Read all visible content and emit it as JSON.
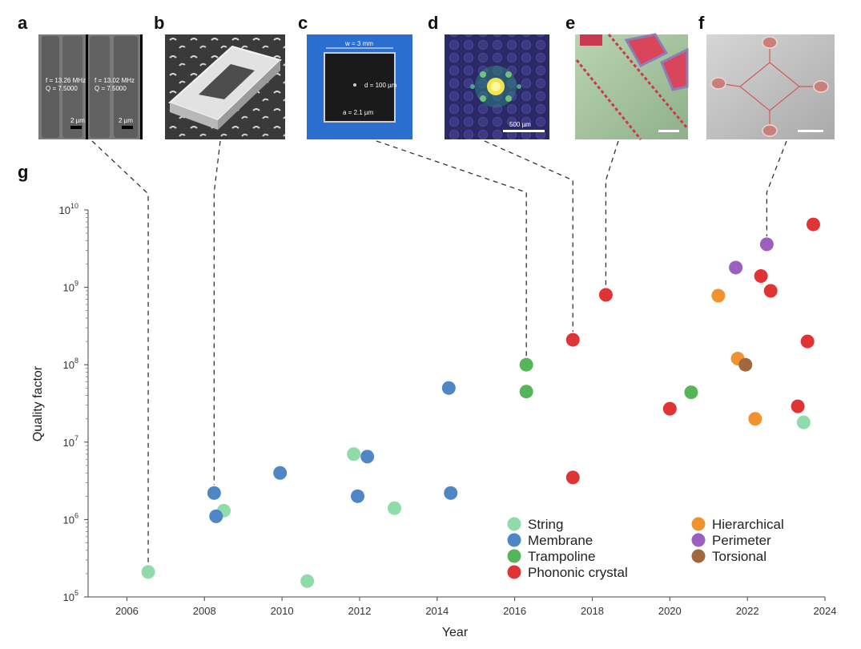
{
  "panels": {
    "letters": [
      "a",
      "b",
      "c",
      "d",
      "e",
      "f",
      "g"
    ],
    "a": {
      "left_label_line1": "f = 13.26 MHz",
      "left_label_line2": "Q = 7.5000",
      "right_label_line1": "f = 13.02 MHz",
      "right_label_line2": "Q = 7.5000",
      "scale_left": "2 µm",
      "scale_right": "2 µm"
    },
    "c": {
      "width_label": "w = 3 mm",
      "d_label": "d = 100 µm",
      "a_label": "a = 2.1 µm"
    },
    "d": {
      "scale_label": "500 µm"
    }
  },
  "colors": {
    "String": "#8fdcaa",
    "Membrane": "#4f86c6",
    "Trampoline": "#55b55a",
    "Phononic crystal": "#e03434",
    "Hierarchical": "#f0922e",
    "Perimeter": "#9b5fc0",
    "Torsional": "#a0683c"
  },
  "chart_data": {
    "type": "scatter",
    "xlabel": "Year",
    "ylabel": "Quality factor",
    "xlim": [
      2005,
      2024
    ],
    "ylim": [
      100000,
      10000000000
    ],
    "yscale": "log",
    "x_ticks": [
      "2006",
      "2008",
      "2010",
      "2012",
      "2014",
      "2016",
      "2018",
      "2020",
      "2022",
      "2024"
    ],
    "y_ticks": [
      {
        "base": "10",
        "exp": "5",
        "value": 100000
      },
      {
        "base": "10",
        "exp": "6",
        "value": 1000000
      },
      {
        "base": "10",
        "exp": "7",
        "value": 10000000
      },
      {
        "base": "10",
        "exp": "8",
        "value": 100000000
      },
      {
        "base": "10",
        "exp": "9",
        "value": 1000000000
      },
      {
        "base": "10",
        "exp": "10",
        "value": 10000000000
      }
    ],
    "legend_position": "bottom-right",
    "legend_columns": [
      [
        "String",
        "Membrane",
        "Trampoline",
        "Phononic crystal"
      ],
      [
        "Hierarchical",
        "Perimeter",
        "Torsional"
      ]
    ],
    "series": [
      {
        "name": "String",
        "points": [
          [
            2006.55,
            210000
          ],
          [
            2008.5,
            1300000
          ],
          [
            2010.65,
            160000
          ],
          [
            2011.85,
            7000000
          ],
          [
            2012.9,
            1400000
          ],
          [
            2023.45,
            18000000
          ]
        ]
      },
      {
        "name": "Membrane",
        "points": [
          [
            2008.25,
            2200000
          ],
          [
            2008.3,
            1100000
          ],
          [
            2009.95,
            4000000
          ],
          [
            2011.95,
            2000000
          ],
          [
            2012.2,
            6500000
          ],
          [
            2014.3,
            50000000
          ],
          [
            2014.35,
            2200000
          ]
        ]
      },
      {
        "name": "Trampoline",
        "points": [
          [
            2016.3,
            100000000
          ],
          [
            2016.3,
            45000000
          ],
          [
            2020.55,
            44000000
          ]
        ]
      },
      {
        "name": "Phononic crystal",
        "points": [
          [
            2017.5,
            210000000
          ],
          [
            2017.5,
            3500000
          ],
          [
            2018.35,
            800000000
          ],
          [
            2020.0,
            27000000
          ],
          [
            2022.35,
            1400000000
          ],
          [
            2022.6,
            900000000
          ],
          [
            2023.3,
            29000000
          ],
          [
            2023.55,
            200000000
          ],
          [
            2023.7,
            6500000000
          ]
        ]
      },
      {
        "name": "Hierarchical",
        "points": [
          [
            2021.25,
            780000000
          ],
          [
            2021.75,
            120000000
          ],
          [
            2022.2,
            20000000
          ]
        ]
      },
      {
        "name": "Perimeter",
        "points": [
          [
            2021.7,
            1800000000
          ],
          [
            2022.5,
            3600000000
          ]
        ]
      },
      {
        "name": "Torsional",
        "points": [
          [
            2021.95,
            100000000
          ]
        ]
      }
    ],
    "leaders": [
      {
        "panel": "a",
        "year": 2006.55,
        "q": 210000
      },
      {
        "panel": "b",
        "year": 2008.25,
        "q": 2200000
      },
      {
        "panel": "c",
        "year": 2016.3,
        "q": 100000000
      },
      {
        "panel": "d",
        "year": 2017.5,
        "q": 210000000
      },
      {
        "panel": "e",
        "year": 2018.35,
        "q": 800000000
      },
      {
        "panel": "f",
        "year": 2022.5,
        "q": 3600000000
      }
    ]
  }
}
